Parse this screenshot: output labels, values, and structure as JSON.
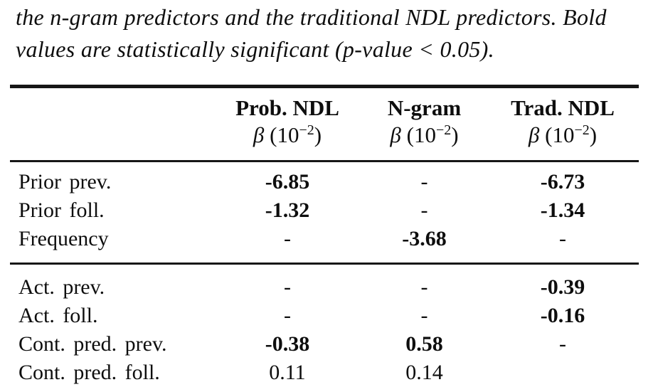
{
  "caption": {
    "line1": "the n-gram predictors and the traditional NDL predictors. Bold",
    "line2": "values are statistically significant (p-value < 0.05)."
  },
  "table": {
    "header": {
      "columns": [
        {
          "title": "Prob. NDL"
        },
        {
          "title": "N-gram"
        },
        {
          "title": "Trad. NDL"
        }
      ],
      "unit": {
        "beta": "β",
        "open": " (10",
        "exp": "−2",
        "close": ")"
      }
    },
    "groups": [
      {
        "rows": [
          {
            "label": "Prior prev.",
            "cells": [
              {
                "text": "-6.85",
                "bold": true
              },
              {
                "text": "-",
                "bold": false
              },
              {
                "text": "-6.73",
                "bold": true
              }
            ]
          },
          {
            "label": "Prior foll.",
            "cells": [
              {
                "text": "-1.32",
                "bold": true
              },
              {
                "text": "-",
                "bold": false
              },
              {
                "text": "-1.34",
                "bold": true
              }
            ]
          },
          {
            "label": "Frequency",
            "cells": [
              {
                "text": "-",
                "bold": false
              },
              {
                "text": "-3.68",
                "bold": true
              },
              {
                "text": "-",
                "bold": false
              }
            ]
          }
        ]
      },
      {
        "rows": [
          {
            "label": "Act. prev.",
            "cells": [
              {
                "text": "-",
                "bold": false
              },
              {
                "text": "-",
                "bold": false
              },
              {
                "text": "-0.39",
                "bold": true
              }
            ]
          },
          {
            "label": "Act. foll.",
            "cells": [
              {
                "text": "-",
                "bold": false
              },
              {
                "text": "-",
                "bold": false
              },
              {
                "text": "-0.16",
                "bold": true
              }
            ]
          },
          {
            "label": "Cont. pred. prev.",
            "cells": [
              {
                "text": "-0.38",
                "bold": true
              },
              {
                "text": "0.58",
                "bold": true
              },
              {
                "text": "-",
                "bold": false
              }
            ]
          },
          {
            "label": "Cont. pred. foll.",
            "cells": [
              {
                "text": "0.11",
                "bold": false
              },
              {
                "text": "0.14",
                "bold": false
              },
              {
                "text": "",
                "bold": false
              }
            ]
          }
        ]
      }
    ]
  },
  "colors": {
    "background": "#ffffff",
    "text": "#0e0e0e",
    "rule": "#161616"
  }
}
